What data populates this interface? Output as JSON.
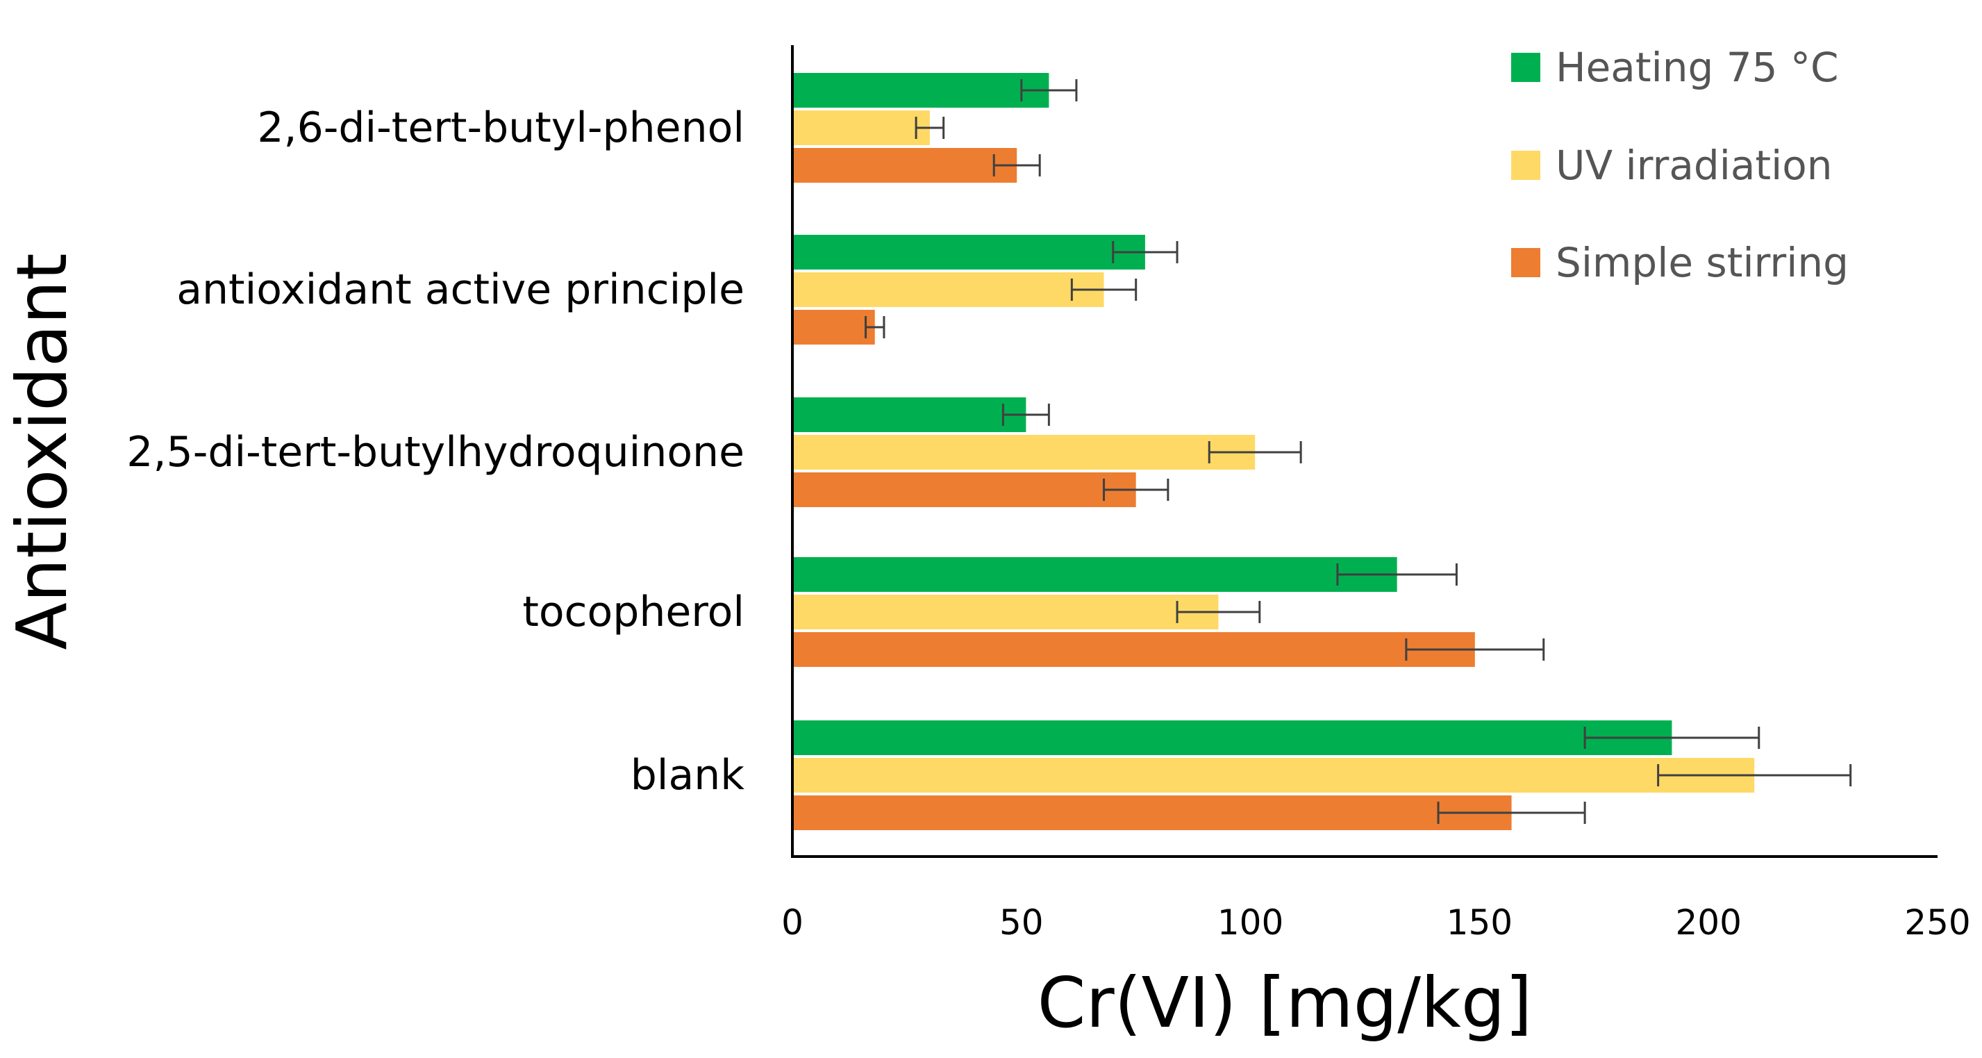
{
  "chart_data": {
    "type": "bar",
    "orientation": "horizontal",
    "xlabel": "Cr(VI) [mg/kg]",
    "ylabel": "Antioxidant",
    "xlim": [
      0,
      250
    ],
    "xticks": [
      "0",
      "50",
      "100",
      "150",
      "200",
      "250"
    ],
    "categories": [
      "2,6-di-tert-butyl-phenol",
      "antioxidant active principle",
      "2,5-di-tert-butylhydroquinone",
      "tocopherol",
      "blank"
    ],
    "series": [
      {
        "name": "Heating 75 °C",
        "color": "#00b050",
        "values": [
          56,
          77,
          51,
          132,
          192
        ],
        "errors": [
          6,
          7,
          5,
          13,
          19
        ]
      },
      {
        "name": "UV irradiation",
        "color": "#ffd966",
        "values": [
          30,
          68,
          101,
          93,
          210
        ],
        "errors": [
          3,
          7,
          10,
          9,
          21
        ]
      },
      {
        "name": "Simple stirring",
        "color": "#ed7d31",
        "values": [
          49,
          18,
          75,
          149,
          157
        ],
        "errors": [
          5,
          2,
          7,
          15,
          16
        ]
      }
    ],
    "legend_position": "top-right",
    "grid": false
  }
}
